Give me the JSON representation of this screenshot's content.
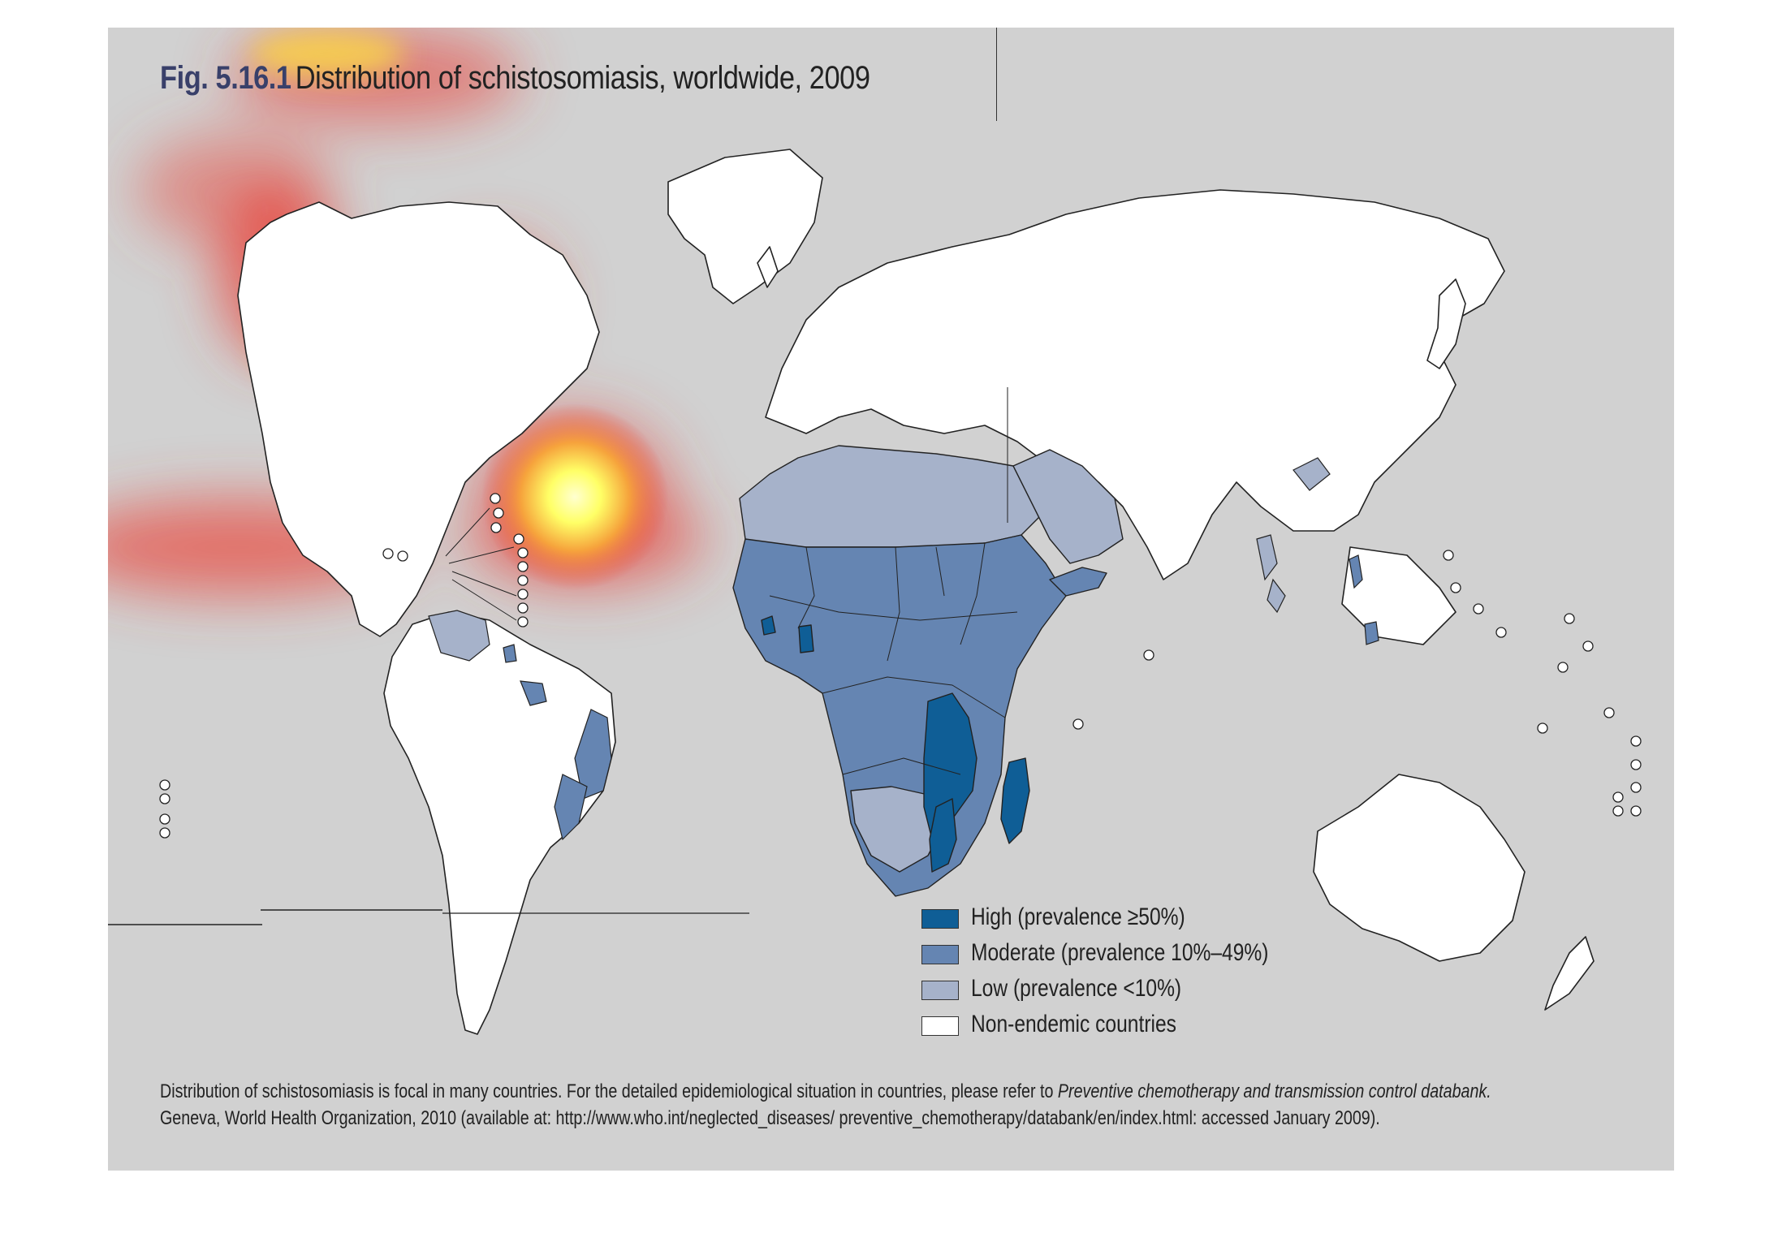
{
  "figure": {
    "label": "Fig. 5.16.1",
    "title": "Distribution of schistosomiasis, worldwide, 2009"
  },
  "legend": {
    "items": [
      {
        "key": "high",
        "label": "High (prevalence ≥50%)",
        "color": "#0f5e96"
      },
      {
        "key": "moderate",
        "label": "Moderate (prevalence 10%–49%)",
        "color": "#6585b2"
      },
      {
        "key": "low",
        "label": "Low (prevalence <10%)",
        "color": "#a6b2ca"
      },
      {
        "key": "non_endemic",
        "label": "Non-endemic countries",
        "color": "#ffffff"
      }
    ]
  },
  "footnote": {
    "line1_text": "Distribution of schistosomiasis is focal in many countries. For the detailed epidemiological situation in countries, please refer to",
    "line1_italic": "Preventive chemotherapy and transmission control databank.",
    "line2_text": "Geneva, World Health Organization, 2010 (available at: http://www.who.int/neglected_diseases/ preventive_chemotherapy/databank/en/index.html: accessed January 2009)."
  },
  "colors": {
    "background": "#d1d1d1",
    "land": "#ffffff",
    "outline": "#222222",
    "heatmap_core": "#ffff9a",
    "heatmap_edge": "#e8483f"
  }
}
